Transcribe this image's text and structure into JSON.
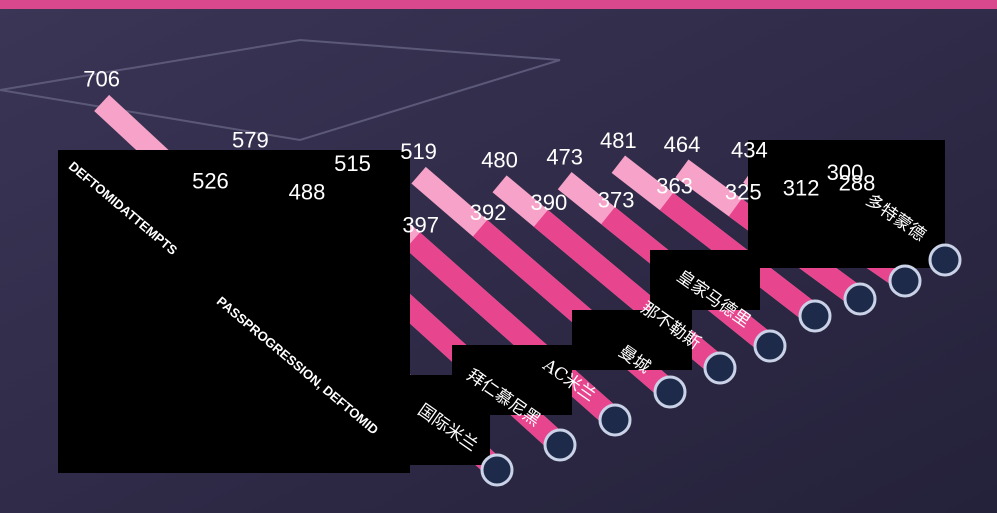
{
  "chart_data": {
    "type": "bar3d",
    "categories": [
      "国际米兰",
      "拜仁慕尼黑",
      "AC米兰",
      "曼城",
      "那不勒斯",
      "皇家马德里",
      null,
      null,
      null,
      "多特蒙德"
    ],
    "series": [
      {
        "name": "DEFTOMIDATTEMPTS",
        "color": "#f7a3c9",
        "values": [
          706,
          579,
          515,
          519,
          480,
          473,
          481,
          464,
          434,
          300
        ]
      },
      {
        "name": "PASSPROGRESSION, DEFTOMID",
        "color": "#e8458f",
        "values": [
          526,
          488,
          397,
          392,
          390,
          373,
          363,
          325,
          312,
          288
        ]
      }
    ],
    "ylim": [
      0,
      750
    ]
  }
}
